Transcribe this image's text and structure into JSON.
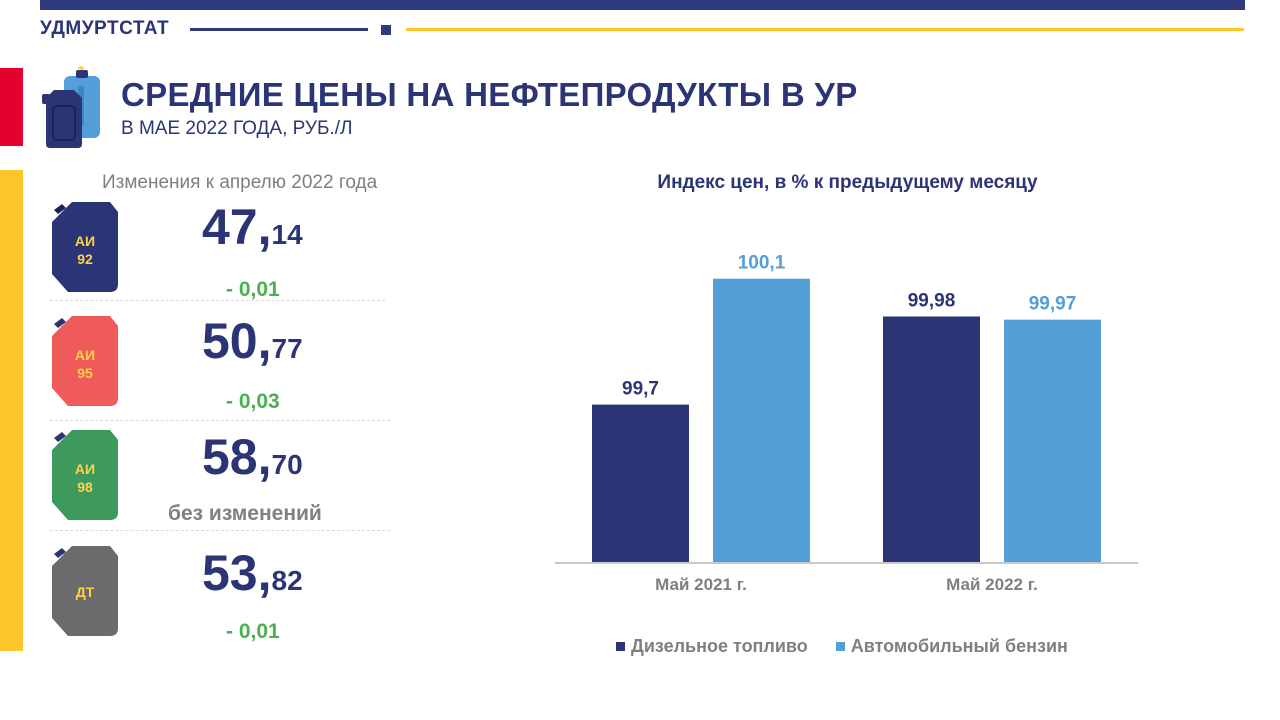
{
  "header": {
    "brand": "УДМУРТСТАТ",
    "title": "СРЕДНИЕ ЦЕНЫ НА НЕФТЕПРОДУКТЫ В УР",
    "subtitle": "В МАЕ 2022 ГОДА, РУБ./Л"
  },
  "changes_caption": "Изменения к апрелю 2022 года",
  "fuels": [
    {
      "can_label_1": "АИ",
      "can_label_2": "92",
      "price_int": "47,",
      "price_frac": "14",
      "change": "- 0,01",
      "can_color": "#2b3576"
    },
    {
      "can_label_1": "АИ",
      "can_label_2": "95",
      "price_int": "50,",
      "price_frac": "77",
      "change": "- 0,03",
      "can_color": "#ef5b5b"
    },
    {
      "can_label_1": "АИ",
      "can_label_2": "98",
      "price_int": "58,",
      "price_frac": "70",
      "change": "без изменений",
      "can_color": "#3d9a5c"
    },
    {
      "can_label_1": "ДТ",
      "can_label_2": "",
      "price_int": "53,",
      "price_frac": "82",
      "change": "- 0,01",
      "can_color": "#6b6b6b"
    }
  ],
  "colors": {
    "navy": "#2b3576",
    "light_blue": "#559fd9",
    "green": "#4caf50",
    "red": "#e4012d",
    "yellow": "#ffc62b"
  },
  "chart_data": {
    "type": "bar",
    "title": "Индекс цен, в % к предыдущему месяцу",
    "categories": [
      "Май 2021 г.",
      "Май 2022 г."
    ],
    "series": [
      {
        "name": "Дизельное топливо",
        "values": [
          99.7,
          99.98
        ],
        "labels": [
          "99,7",
          "99,98"
        ],
        "color": "#2b3576"
      },
      {
        "name": "Автомобильный бензин",
        "values": [
          100.1,
          99.97
        ],
        "labels": [
          "100,1",
          "99,97"
        ],
        "color": "#559fd9"
      }
    ],
    "ylim": [
      99.2,
      100.15
    ],
    "grid": false,
    "legend": "bottom"
  }
}
